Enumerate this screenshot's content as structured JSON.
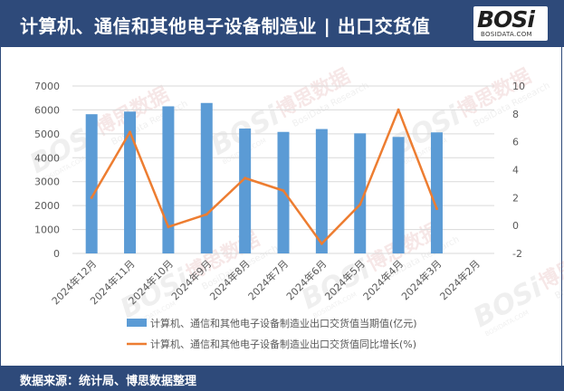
{
  "header": {
    "title": "计算机、通信和其他电子设备制造业 | 出口交货值"
  },
  "logo": {
    "word": "BOSi",
    "sub": "BOSIDATA.COM"
  },
  "watermark": {
    "cn": "博思数据",
    "en": "BosiData Research",
    "word": "BOSi",
    "sub": "BOSIDATA.COM"
  },
  "footer": {
    "source": "数据来源：统计局、博思数据整理"
  },
  "colors": {
    "header_bg": "#2e4a7a",
    "bar": "#5b9bd5",
    "line": "#ed7d31",
    "grid": "#d9d9d9",
    "axis_text": "#595959"
  },
  "chart_data": {
    "type": "bar+line",
    "categories": [
      "2024年12月",
      "2024年11月",
      "2024年10月",
      "2024年9月",
      "2024年8月",
      "2024年7月",
      "2024年6月",
      "2024年5月",
      "2024年4月",
      "2024年3月",
      "2024年2月"
    ],
    "series": [
      {
        "name": "计算机、通信和其他电子设备制造业出口交货值当期值(亿元)",
        "type": "bar",
        "axis": "left",
        "values": [
          5820,
          5930,
          6150,
          6290,
          5220,
          5080,
          5200,
          5020,
          4870,
          5060,
          null
        ]
      },
      {
        "name": "计算机、通信和其他电子设备制造业出口交货值同比增长(%)",
        "type": "line",
        "axis": "right",
        "values": [
          2.0,
          6.7,
          -0.1,
          0.8,
          3.4,
          2.5,
          -1.3,
          1.5,
          8.3,
          1.2,
          null
        ]
      }
    ],
    "y_left": {
      "min": 0,
      "max": 7000,
      "ticks": [
        0,
        1000,
        2000,
        3000,
        4000,
        5000,
        6000,
        7000
      ]
    },
    "y_right": {
      "min": -2,
      "max": 10,
      "ticks": [
        -2,
        0,
        2,
        4,
        6,
        8,
        10
      ]
    },
    "grid": true,
    "legend_position": "bottom"
  }
}
